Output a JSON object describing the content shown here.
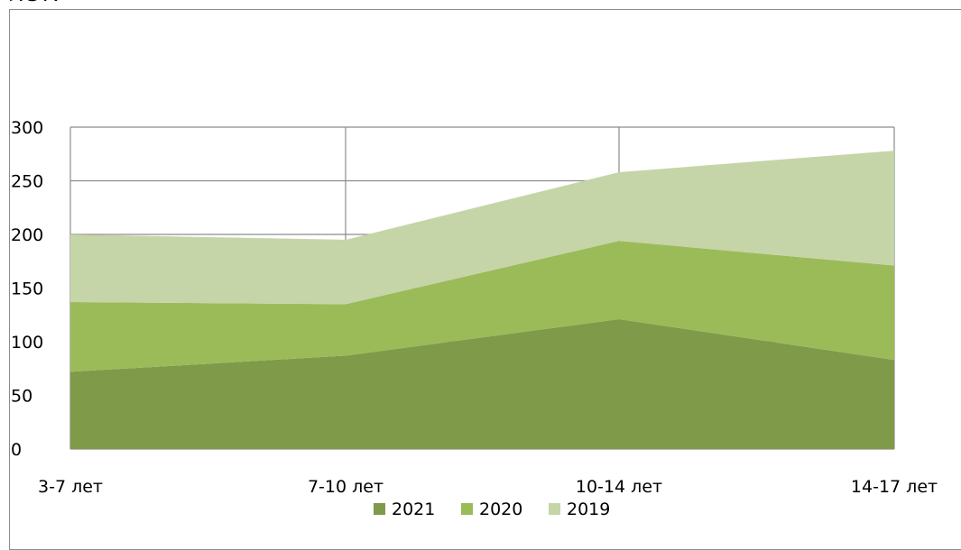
{
  "header": {
    "clipped_title": "лет."
  },
  "chart_data": {
    "type": "area",
    "stacked": true,
    "categories": [
      "3-7 лет",
      "7-10 лет",
      "10-14 лет",
      "14-17 лет"
    ],
    "series": [
      {
        "name": "2021",
        "values": [
          72,
          87,
          121,
          83
        ],
        "color": "#7f9a48"
      },
      {
        "name": "2020",
        "values": [
          65,
          48,
          73,
          88
        ],
        "color": "#9bbb59"
      },
      {
        "name": "2019",
        "values": [
          63,
          60,
          64,
          107
        ],
        "color": "#c5d5a8"
      }
    ],
    "ylim": [
      0,
      300
    ],
    "yticks": [
      "0",
      "50",
      "100",
      "150",
      "200",
      "250",
      "300"
    ],
    "grid": true,
    "legend_position": "bottom"
  }
}
